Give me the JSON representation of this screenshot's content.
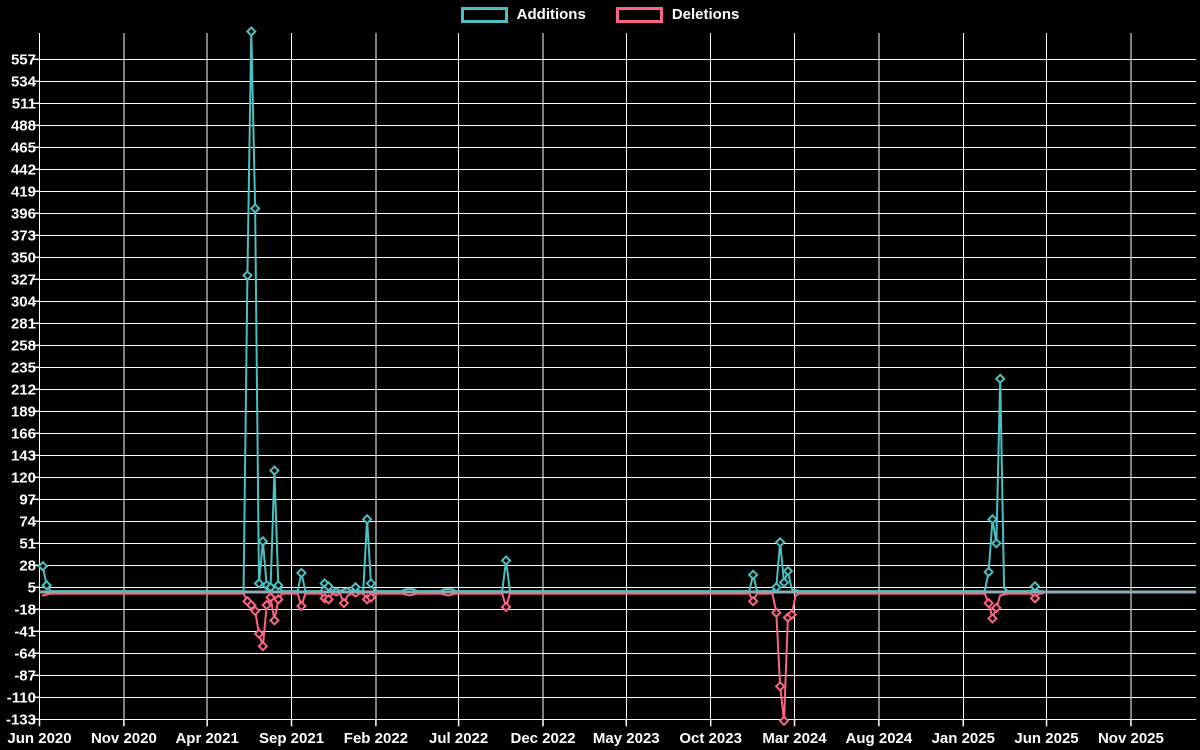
{
  "page": {
    "background": "#000000"
  },
  "chart_data": {
    "type": "line",
    "title": "",
    "xlabel": "",
    "ylabel": "",
    "grid": true,
    "legend_position": "top-center",
    "colors": {
      "background": "#000000",
      "grid": "#ffffff",
      "zero_line": "#8dacb5",
      "text": "#ffffff",
      "additions": "#4bc0c0",
      "deletions": "#ff6384"
    },
    "series": [
      {
        "name": "Additions",
        "color": "#4bc0c0"
      },
      {
        "name": "Deletions",
        "color": "#ff6384"
      }
    ],
    "x_axis": {
      "type": "time",
      "ticks": [
        {
          "label": "Jun 2020",
          "date": "2020-06-01"
        },
        {
          "label": "Nov 2020",
          "date": "2020-11-01"
        },
        {
          "label": "Apr 2021",
          "date": "2021-04-01"
        },
        {
          "label": "Sep 2021",
          "date": "2021-09-01"
        },
        {
          "label": "Feb 2022",
          "date": "2022-02-01"
        },
        {
          "label": "Jul 2022",
          "date": "2022-07-01"
        },
        {
          "label": "Dec 2022",
          "date": "2022-12-01"
        },
        {
          "label": "May 2023",
          "date": "2023-05-01"
        },
        {
          "label": "Oct 2023",
          "date": "2023-10-01"
        },
        {
          "label": "Mar 2024",
          "date": "2024-03-01"
        },
        {
          "label": "Aug 2024",
          "date": "2024-08-01"
        },
        {
          "label": "Jan 2025",
          "date": "2025-01-01"
        },
        {
          "label": "Jun 2025",
          "date": "2025-06-01"
        },
        {
          "label": "Nov 2025",
          "date": "2025-11-01"
        }
      ]
    },
    "y_axis": {
      "min": -133,
      "max": 585,
      "tick_step": 23,
      "ticks": [
        557,
        534,
        511,
        488,
        465,
        442,
        419,
        396,
        373,
        350,
        327,
        304,
        281,
        258,
        235,
        212,
        189,
        166,
        143,
        120,
        97,
        74,
        51,
        28,
        5,
        -18,
        -41,
        -64,
        -87,
        -110,
        -133
      ]
    },
    "weekly": {
      "start": "2020-06-07",
      "end": "2025-05-25",
      "interval_days": 7,
      "note": "weeks not listed are [additions 0, deletions 0]",
      "nonzero_points": [
        [
          "2020-06-07",
          26,
          -2
        ],
        [
          "2020-06-14",
          6,
          -1
        ],
        [
          "2021-06-13",
          330,
          -8
        ],
        [
          "2021-06-20",
          585,
          -12
        ],
        [
          "2021-06-27",
          400,
          -18
        ],
        [
          "2021-07-04",
          8,
          -42
        ],
        [
          "2021-07-11",
          52,
          -55
        ],
        [
          "2021-07-18",
          6,
          -12
        ],
        [
          "2021-07-25",
          4,
          -4
        ],
        [
          "2021-08-01",
          126,
          -28
        ],
        [
          "2021-08-08",
          6,
          -6
        ],
        [
          "2021-09-19",
          19,
          -13
        ],
        [
          "2021-10-31",
          8,
          -5
        ],
        [
          "2021-11-07",
          5,
          -6
        ],
        [
          "2021-11-21",
          3,
          -2
        ],
        [
          "2021-12-05",
          2,
          -10
        ],
        [
          "2021-12-12",
          3,
          -2
        ],
        [
          "2021-12-26",
          4,
          -3
        ],
        [
          "2022-01-16",
          75,
          -6
        ],
        [
          "2022-01-23",
          8,
          -4
        ],
        [
          "2022-03-27",
          2,
          -1
        ],
        [
          "2022-04-03",
          2,
          -2
        ],
        [
          "2022-04-10",
          2,
          -1
        ],
        [
          "2022-06-05",
          2,
          -1
        ],
        [
          "2022-06-12",
          2,
          -2
        ],
        [
          "2022-06-19",
          2,
          -1
        ],
        [
          "2022-09-25",
          32,
          -14
        ],
        [
          "2023-12-17",
          17,
          -8
        ],
        [
          "2024-01-28",
          4,
          -20
        ],
        [
          "2024-02-04",
          51,
          -97
        ],
        [
          "2024-02-11",
          9,
          -133
        ],
        [
          "2024-02-18",
          21,
          -25
        ],
        [
          "2024-02-25",
          2,
          -22
        ],
        [
          "2024-03-03",
          1,
          -2
        ],
        [
          "2025-02-16",
          20,
          -10
        ],
        [
          "2025-02-23",
          75,
          -26
        ],
        [
          "2025-03-02",
          50,
          -15
        ],
        [
          "2025-03-09",
          222,
          -2
        ],
        [
          "2025-03-16",
          3,
          -1
        ],
        [
          "2025-05-11",
          5,
          -5
        ]
      ]
    }
  }
}
